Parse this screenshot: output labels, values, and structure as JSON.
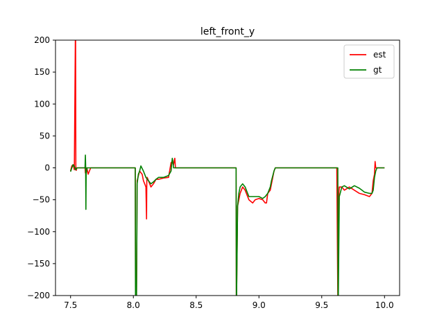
{
  "chart_data": {
    "type": "line",
    "title": "left_front_y",
    "xlabel": "",
    "ylabel": "",
    "xlim": [
      7.38,
      10.12
    ],
    "ylim": [
      -200,
      200
    ],
    "grid": false,
    "legend_position": "top-right",
    "xticks": [
      7.5,
      8.0,
      8.5,
      9.0,
      9.5,
      10.0
    ],
    "xtick_labels": [
      "7.5",
      "8.0",
      "8.5",
      "9.0",
      "9.5",
      "10.0"
    ],
    "yticks": [
      -200,
      -150,
      -100,
      -50,
      0,
      50,
      100,
      150,
      200
    ],
    "ytick_labels": [
      "−200",
      "−150",
      "−100",
      "−50",
      "0",
      "50",
      "100",
      "150",
      "200"
    ],
    "series": [
      {
        "name": "est",
        "color": "#ff0000",
        "x": [
          7.5,
          7.51,
          7.52,
          7.53,
          7.538,
          7.54,
          7.542,
          7.545,
          7.55,
          7.6,
          7.615,
          7.618,
          7.622,
          7.625,
          7.63,
          7.64,
          7.66,
          8.0,
          8.015,
          8.017,
          8.025,
          8.03,
          8.05,
          8.07,
          8.08,
          8.1,
          8.105,
          8.107,
          8.11,
          8.12,
          8.14,
          8.16,
          8.18,
          8.2,
          8.24,
          8.28,
          8.3,
          8.31,
          8.32,
          8.33,
          8.335,
          8.34,
          8.36,
          8.5,
          8.81,
          8.818,
          8.82,
          8.822,
          8.83,
          8.85,
          8.87,
          8.89,
          8.92,
          8.95,
          8.97,
          9.0,
          9.03,
          9.05,
          9.06,
          9.07,
          9.09,
          9.1,
          9.12,
          9.13,
          9.15,
          9.3,
          9.62,
          9.628,
          9.63,
          9.632,
          9.64,
          9.66,
          9.68,
          9.72,
          9.76,
          9.8,
          9.84,
          9.88,
          9.9,
          9.91,
          9.92,
          9.925,
          9.93,
          9.94,
          10.0
        ],
        "y": [
          -5,
          3,
          5,
          -3,
          200,
          200,
          0,
          -4,
          0,
          0,
          0,
          -8,
          0,
          0,
          0,
          -10,
          0,
          0,
          0,
          -200,
          -200,
          -20,
          -5,
          -10,
          -20,
          -30,
          -80,
          -20,
          -15,
          -20,
          -30,
          -25,
          -18,
          -18,
          -16,
          -15,
          8,
          10,
          5,
          15,
          0,
          0,
          0,
          0,
          0,
          0,
          -200,
          -200,
          -60,
          -40,
          -30,
          -35,
          -50,
          -55,
          -50,
          -48,
          -50,
          -55,
          -55,
          -40,
          -35,
          -25,
          -5,
          0,
          0,
          0,
          0,
          -200,
          -200,
          -50,
          -30,
          -30,
          -35,
          -30,
          -35,
          -40,
          -42,
          -45,
          -40,
          -20,
          -10,
          10,
          0,
          0,
          0
        ]
      },
      {
        "name": "gt",
        "color": "#008000",
        "x": [
          7.5,
          7.51,
          7.52,
          7.53,
          7.54,
          7.55,
          7.6,
          7.615,
          7.618,
          7.62,
          7.622,
          7.624,
          7.63,
          7.66,
          8.0,
          8.015,
          8.017,
          8.025,
          8.03,
          8.04,
          8.05,
          8.06,
          8.08,
          8.1,
          8.12,
          8.14,
          8.16,
          8.18,
          8.2,
          8.24,
          8.28,
          8.3,
          8.31,
          8.315,
          8.32,
          8.33,
          8.34,
          8.36,
          8.5,
          8.81,
          8.818,
          8.82,
          8.822,
          8.83,
          8.84,
          8.85,
          8.87,
          8.89,
          8.92,
          8.95,
          8.97,
          9.0,
          9.03,
          9.05,
          9.07,
          9.09,
          9.1,
          9.12,
          9.13,
          9.15,
          9.3,
          9.62,
          9.628,
          9.63,
          9.632,
          9.64,
          9.66,
          9.68,
          9.72,
          9.76,
          9.8,
          9.84,
          9.88,
          9.9,
          9.91,
          9.92,
          9.93,
          9.94,
          10.0
        ],
        "y": [
          -6,
          0,
          5,
          2,
          -3,
          0,
          0,
          0,
          20,
          5,
          -65,
          -10,
          0,
          0,
          0,
          0,
          -200,
          -200,
          -25,
          -10,
          -5,
          3,
          -5,
          -15,
          -20,
          -25,
          -22,
          -18,
          -15,
          -15,
          -12,
          -5,
          15,
          10,
          0,
          0,
          0,
          0,
          0,
          0,
          0,
          -200,
          -200,
          -60,
          -40,
          -30,
          -25,
          -30,
          -45,
          -45,
          -45,
          -45,
          -48,
          -45,
          -40,
          -30,
          -20,
          -5,
          0,
          0,
          0,
          0,
          0,
          -200,
          -200,
          -45,
          -30,
          -28,
          -33,
          -28,
          -32,
          -38,
          -40,
          -40,
          -35,
          -15,
          -5,
          0,
          0
        ]
      }
    ]
  }
}
